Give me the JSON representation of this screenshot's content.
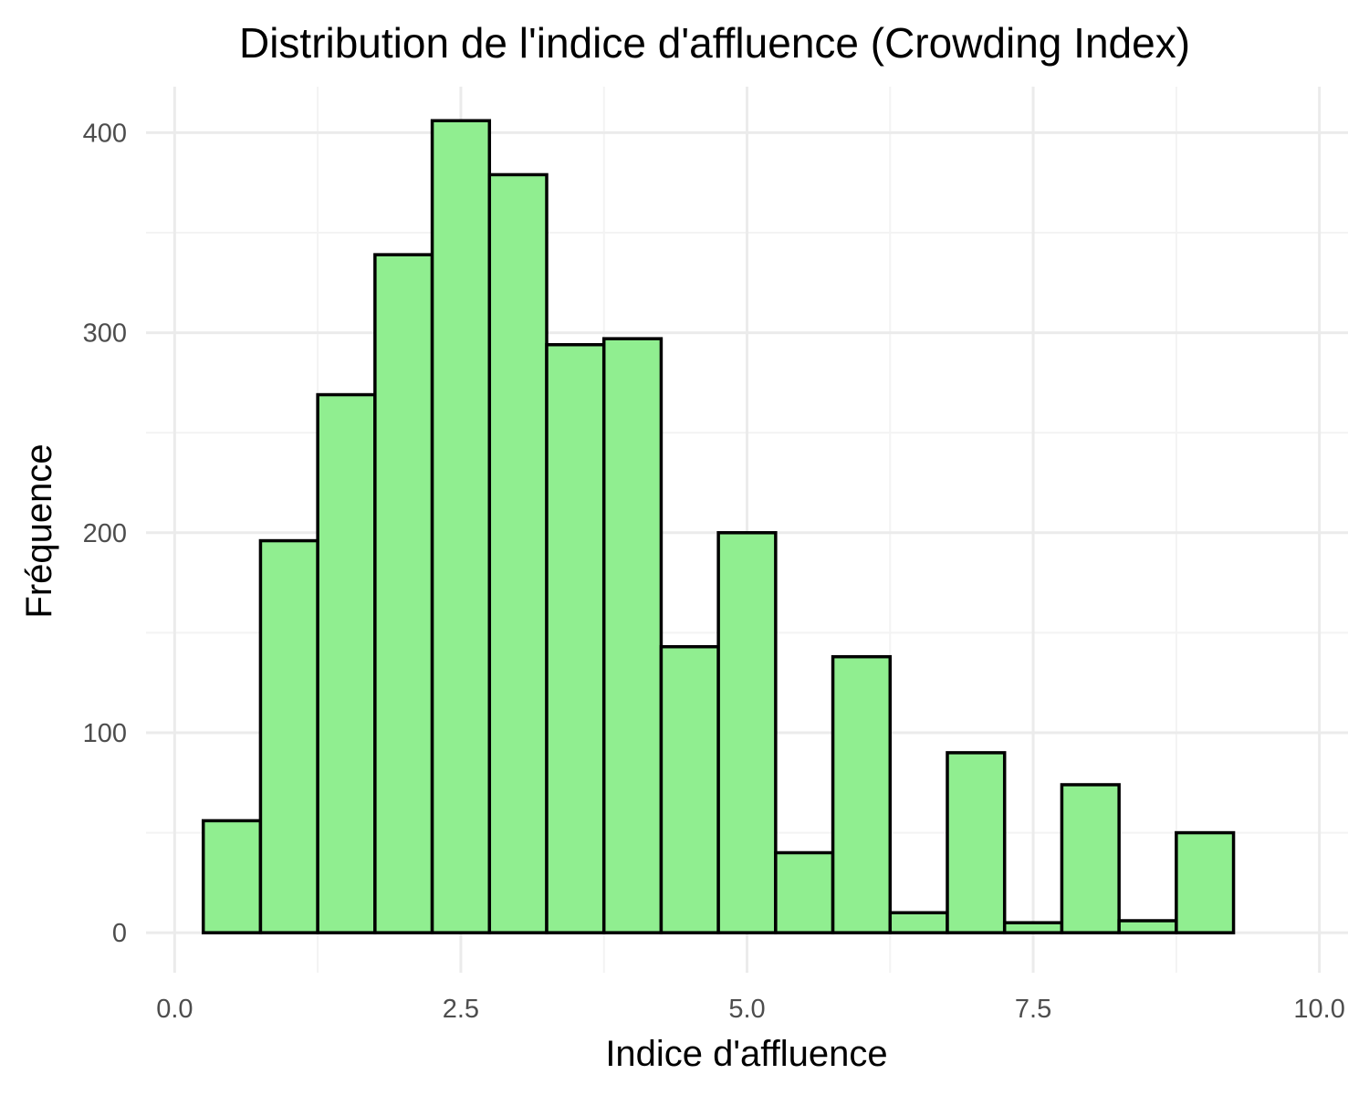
{
  "chart_data": {
    "type": "bar",
    "title": "Distribution de l'indice d'affluence (Crowding Index)",
    "xlabel": "Indice d'affluence",
    "ylabel": "Fréquence",
    "bin_width": 0.5,
    "bin_centers": [
      0.5,
      1.0,
      1.5,
      2.0,
      2.5,
      3.0,
      3.5,
      4.0,
      4.5,
      5.0,
      5.5,
      6.0,
      6.5,
      7.0,
      7.5,
      8.0,
      8.5,
      9.0,
      9.5
    ],
    "values": [
      56,
      196,
      269,
      339,
      406,
      379,
      294,
      297,
      143,
      200,
      40,
      138,
      10,
      90,
      5,
      74,
      6,
      50,
      0
    ],
    "xlim": [
      -0.25,
      10.25
    ],
    "ylim": [
      -20,
      423
    ],
    "x_ticks": [
      0.0,
      2.5,
      5.0,
      7.5,
      10.0
    ],
    "x_tick_labels": [
      "0.0",
      "2.5",
      "5.0",
      "7.5",
      "10.0"
    ],
    "y_ticks": [
      0,
      100,
      200,
      300,
      400
    ],
    "y_tick_labels": [
      "0",
      "100",
      "200",
      "300",
      "400"
    ],
    "grid": true,
    "legend": "none",
    "bar_fill": "#90ee90",
    "bar_outline": "#000000"
  }
}
